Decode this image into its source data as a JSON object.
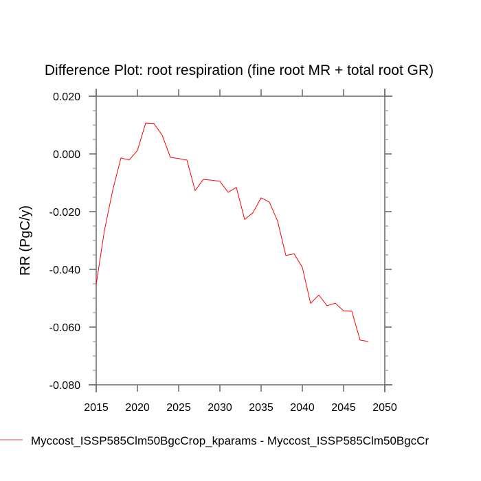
{
  "chart_data": {
    "type": "line",
    "title": "Difference Plot: root respiration (fine root MR + total root GR)",
    "xlabel": "",
    "ylabel": "RR  (PgC/y)",
    "xlim": [
      2015,
      2050
    ],
    "ylim": [
      -0.08,
      0.02
    ],
    "x_ticks": [
      2015,
      2020,
      2025,
      2030,
      2035,
      2040,
      2045,
      2050
    ],
    "x_tick_labels": [
      "2015",
      "2020",
      "2025",
      "2030",
      "2035",
      "2040",
      "2045",
      "2050"
    ],
    "y_ticks": [
      0.02,
      0.0,
      -0.02,
      -0.04,
      -0.06,
      -0.08
    ],
    "y_tick_labels": [
      "0.020",
      "0.000",
      "-0.020",
      "-0.040",
      "-0.060",
      "-0.080"
    ],
    "y_minor_step": 0.005,
    "grid": false,
    "legend_position": "bottom-left",
    "series": [
      {
        "name": "Myccost_ISSP585Clm50BgcCrop_kparams - Myccost_ISSP585Clm50BgcCr",
        "color": "#ff0000",
        "legend_color": "#f08080",
        "x": [
          2015,
          2016,
          2017,
          2018,
          2019,
          2020,
          2021,
          2022,
          2023,
          2024,
          2025,
          2026,
          2027,
          2028,
          2029,
          2030,
          2031,
          2032,
          2033,
          2034,
          2035,
          2036,
          2037,
          2038,
          2039,
          2040,
          2041,
          2042,
          2043,
          2044,
          2045,
          2046,
          2047,
          2048
        ],
        "values": [
          -0.0452,
          -0.0265,
          -0.0126,
          -0.0014,
          -0.0021,
          0.0012,
          0.0107,
          0.0105,
          0.0065,
          -0.0012,
          -0.0016,
          -0.0021,
          -0.0127,
          -0.0088,
          -0.0091,
          -0.0095,
          -0.0133,
          -0.0116,
          -0.0227,
          -0.0204,
          -0.0152,
          -0.0167,
          -0.0233,
          -0.0352,
          -0.0346,
          -0.0393,
          -0.0518,
          -0.0489,
          -0.0526,
          -0.0517,
          -0.0544,
          -0.0545,
          -0.0645,
          -0.065
        ]
      }
    ]
  }
}
